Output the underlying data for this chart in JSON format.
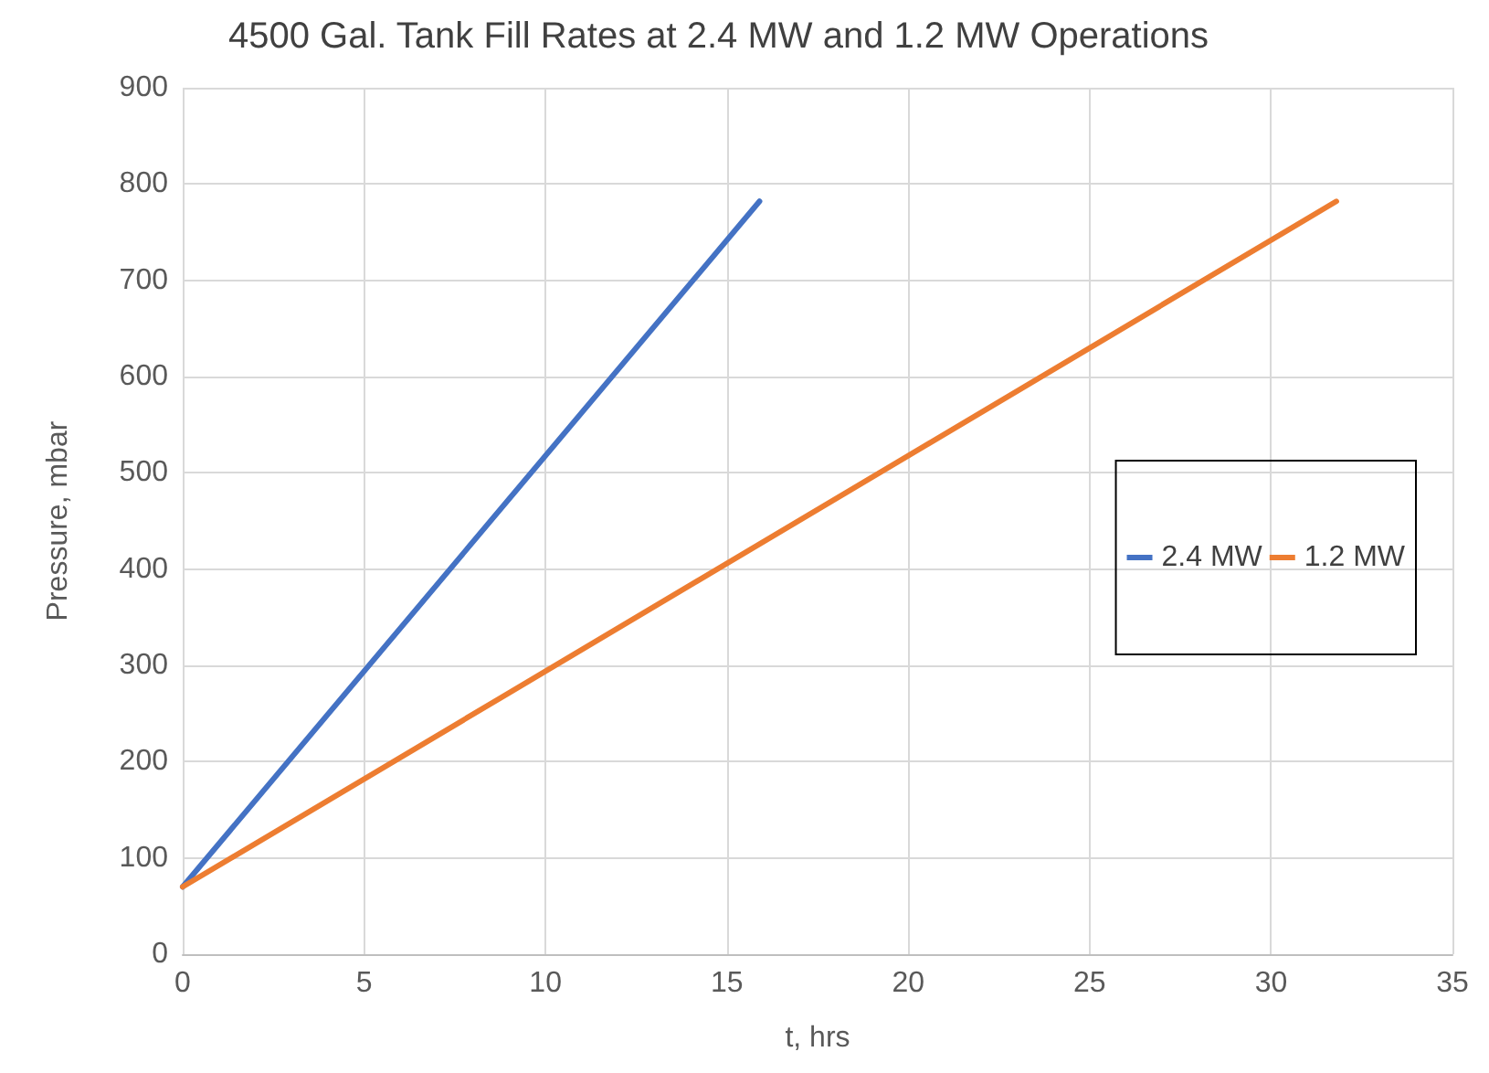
{
  "chart_data": {
    "type": "line",
    "title": "4500 Gal. Tank Fill Rates at 2.4 MW and 1.2 MW Operations",
    "xlabel": "t, hrs",
    "ylabel": "Pressure, mbar",
    "series": [
      {
        "name": "2.4 MW",
        "color": "#4472c4",
        "x": [
          0,
          15.9
        ],
        "values": [
          70,
          782
        ]
      },
      {
        "name": "1.2 MW",
        "color": "#ed7d31",
        "x": [
          0,
          31.8
        ],
        "values": [
          70,
          782
        ]
      }
    ],
    "xlim": [
      0,
      35
    ],
    "xticks": [
      0,
      5,
      10,
      15,
      20,
      25,
      30,
      35
    ],
    "ylim": [
      0,
      900
    ],
    "yticks": [
      0,
      100,
      200,
      300,
      400,
      500,
      600,
      700,
      800,
      900
    ],
    "grid": true,
    "legend": "right",
    "marker": "none",
    "line_style": "solid"
  }
}
